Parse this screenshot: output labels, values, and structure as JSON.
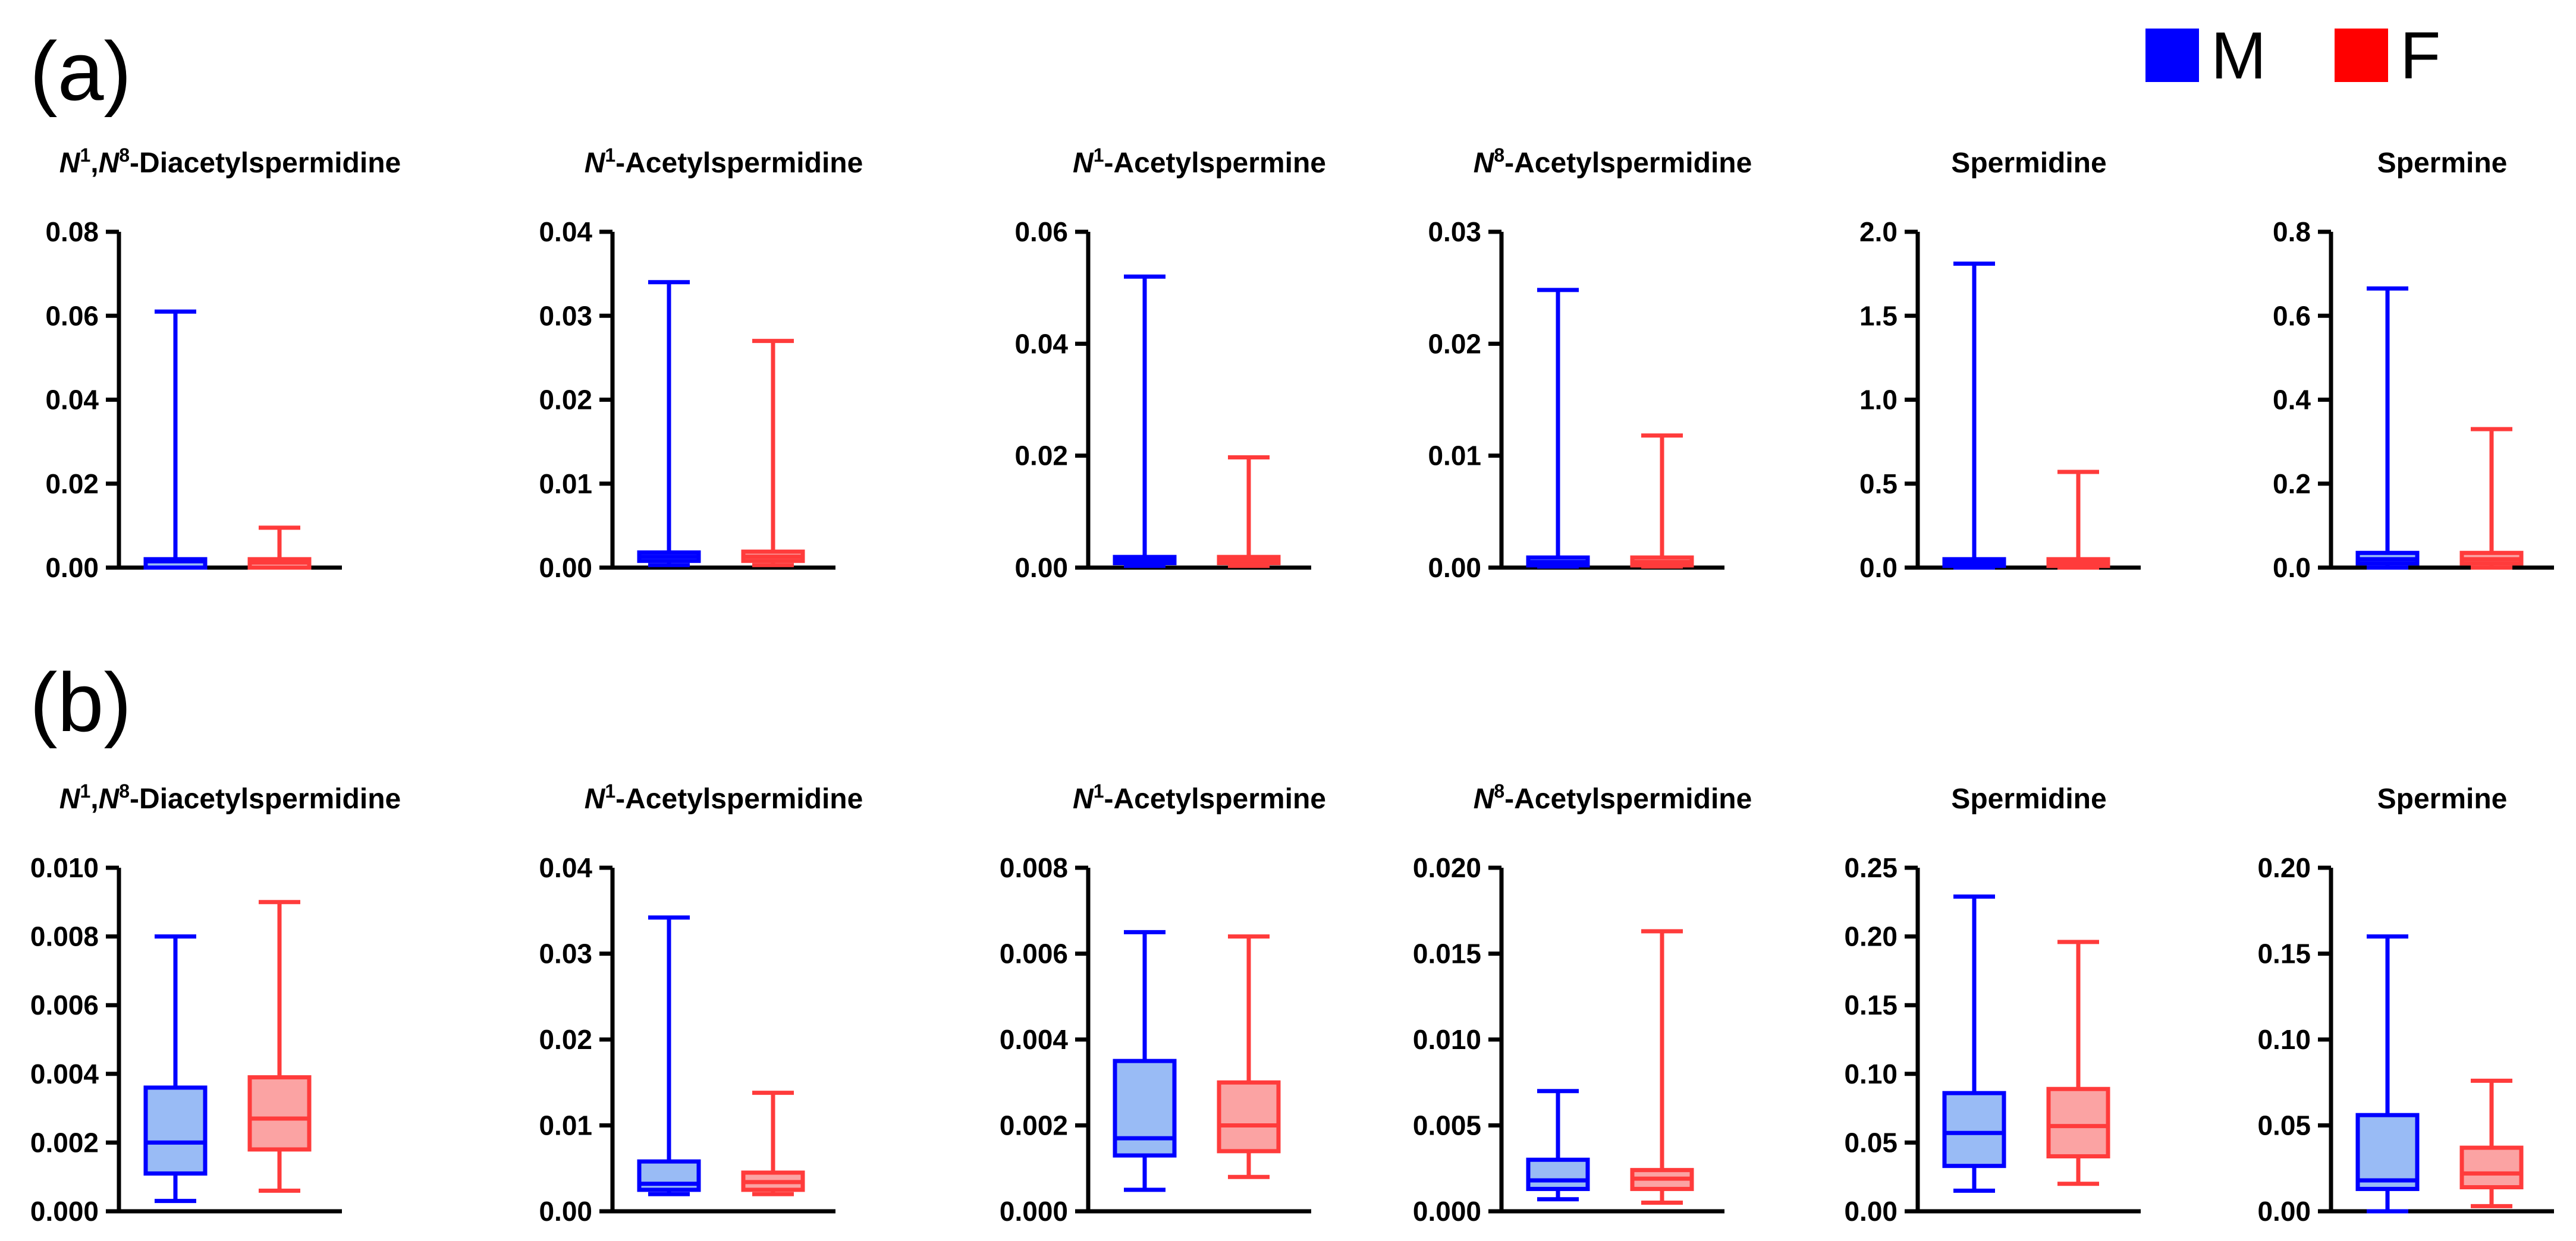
{
  "colors": {
    "M_stroke": "#0000ff",
    "M_fill": "#99bbf5",
    "F_stroke": "#ff3b3b",
    "F_fill": "#fba3a3"
  },
  "legend": [
    {
      "key": "M",
      "label": "M",
      "color": "#0000ff"
    },
    {
      "key": "F",
      "label": "F",
      "color": "#ff0000"
    }
  ],
  "chart_data": [
    {
      "panel": "(a)",
      "charts": [
        {
          "type": "box",
          "title": [
            "N",
            "1",
            ",",
            "N",
            "8",
            "-Diacetylspermidine"
          ],
          "ylim": [
            0,
            0.08
          ],
          "ticks": [
            0,
            0.02,
            0.04,
            0.06,
            0.08
          ],
          "tick_labels": [
            "0.00",
            "0.02",
            "0.04",
            "0.06",
            "0.08"
          ],
          "series": [
            {
              "name": "M",
              "min": 0.0,
              "q1": 0.0,
              "median": 0.0015,
              "q3": 0.002,
              "max": 0.061
            },
            {
              "name": "F",
              "min": 0.0,
              "q1": 0.0,
              "median": 0.0012,
              "q3": 0.002,
              "max": 0.0095
            }
          ]
        },
        {
          "type": "box",
          "title": [
            "N",
            "1",
            "-Acetylspermidine"
          ],
          "ylim": [
            0,
            0.04
          ],
          "ticks": [
            0,
            0.01,
            0.02,
            0.03,
            0.04
          ],
          "tick_labels": [
            "0.00",
            "0.01",
            "0.02",
            "0.03",
            "0.04"
          ],
          "series": [
            {
              "name": "M",
              "min": 0.0003,
              "q1": 0.0008,
              "median": 0.0013,
              "q3": 0.0018,
              "max": 0.034
            },
            {
              "name": "F",
              "min": 0.0003,
              "q1": 0.0008,
              "median": 0.0013,
              "q3": 0.0019,
              "max": 0.027
            }
          ]
        },
        {
          "type": "box",
          "title": [
            "N",
            "1",
            "-Acetylspermine"
          ],
          "ylim": [
            0,
            0.06
          ],
          "ticks": [
            0,
            0.02,
            0.04,
            0.06
          ],
          "tick_labels": [
            "0.00",
            "0.02",
            "0.04",
            "0.06"
          ],
          "series": [
            {
              "name": "M",
              "min": 0.0003,
              "q1": 0.0008,
              "median": 0.0013,
              "q3": 0.0019,
              "max": 0.052
            },
            {
              "name": "F",
              "min": 0.0003,
              "q1": 0.0008,
              "median": 0.0013,
              "q3": 0.0019,
              "max": 0.0197
            }
          ]
        },
        {
          "type": "box",
          "title": [
            "N",
            "8",
            "-Acetylspermidine"
          ],
          "ylim": [
            0,
            0.03
          ],
          "ticks": [
            0,
            0.01,
            0.02,
            0.03
          ],
          "tick_labels": [
            "0.00",
            "0.01",
            "0.02",
            "0.03"
          ],
          "series": [
            {
              "name": "M",
              "min": 0.0001,
              "q1": 0.0002,
              "median": 0.0005,
              "q3": 0.0009,
              "max": 0.0248
            },
            {
              "name": "F",
              "min": 0.0001,
              "q1": 0.0002,
              "median": 0.0005,
              "q3": 0.0009,
              "max": 0.0118
            }
          ]
        },
        {
          "type": "box",
          "title": [
            "Spermidine"
          ],
          "ylim": [
            0,
            2.0
          ],
          "ticks": [
            0,
            0.5,
            1.0,
            1.5,
            2.0
          ],
          "tick_labels": [
            "0.0",
            "0.5",
            "1.0",
            "1.5",
            "2.0"
          ],
          "series": [
            {
              "name": "M",
              "min": 0.0,
              "q1": 0.01,
              "median": 0.03,
              "q3": 0.05,
              "max": 1.81
            },
            {
              "name": "F",
              "min": 0.0,
              "q1": 0.01,
              "median": 0.03,
              "q3": 0.05,
              "max": 0.57
            }
          ]
        },
        {
          "type": "box",
          "title": [
            "Spermine"
          ],
          "ylim": [
            0,
            0.8
          ],
          "ticks": [
            0,
            0.2,
            0.4,
            0.6,
            0.8
          ],
          "tick_labels": [
            "0.0",
            "0.2",
            "0.4",
            "0.6",
            "0.8"
          ],
          "series": [
            {
              "name": "M",
              "min": 0.0,
              "q1": 0.01,
              "median": 0.02,
              "q3": 0.035,
              "max": 0.665
            },
            {
              "name": "F",
              "min": 0.0,
              "q1": 0.01,
              "median": 0.02,
              "q3": 0.035,
              "max": 0.33
            }
          ]
        }
      ]
    },
    {
      "panel": "(b)",
      "charts": [
        {
          "type": "box",
          "title": [
            "N",
            "1",
            ",",
            "N",
            "8",
            "-Diacetylspermidine"
          ],
          "ylim": [
            0,
            0.01
          ],
          "ticks": [
            0,
            0.002,
            0.004,
            0.006,
            0.008,
            0.01
          ],
          "tick_labels": [
            "0.000",
            "0.002",
            "0.004",
            "0.006",
            "0.008",
            "0.010"
          ],
          "series": [
            {
              "name": "M",
              "min": 0.0003,
              "q1": 0.0011,
              "median": 0.002,
              "q3": 0.0036,
              "max": 0.008
            },
            {
              "name": "F",
              "min": 0.0006,
              "q1": 0.0018,
              "median": 0.0027,
              "q3": 0.0039,
              "max": 0.009
            }
          ]
        },
        {
          "type": "box",
          "title": [
            "N",
            "1",
            "-Acetylspermidine"
          ],
          "ylim": [
            0,
            0.04
          ],
          "ticks": [
            0,
            0.01,
            0.02,
            0.03,
            0.04
          ],
          "tick_labels": [
            "0.00",
            "0.01",
            "0.02",
            "0.03",
            "0.04"
          ],
          "series": [
            {
              "name": "M",
              "min": 0.002,
              "q1": 0.0025,
              "median": 0.0032,
              "q3": 0.0058,
              "max": 0.0342
            },
            {
              "name": "F",
              "min": 0.002,
              "q1": 0.0025,
              "median": 0.0034,
              "q3": 0.0045,
              "max": 0.0138
            }
          ]
        },
        {
          "type": "box",
          "title": [
            "N",
            "1",
            "-Acetylspermine"
          ],
          "ylim": [
            0,
            0.008
          ],
          "ticks": [
            0,
            0.002,
            0.004,
            0.006,
            0.008
          ],
          "tick_labels": [
            "0.000",
            "0.002",
            "0.004",
            "0.006",
            "0.008"
          ],
          "series": [
            {
              "name": "M",
              "min": 0.0005,
              "q1": 0.0013,
              "median": 0.0017,
              "q3": 0.0035,
              "max": 0.0065
            },
            {
              "name": "F",
              "min": 0.0008,
              "q1": 0.0014,
              "median": 0.002,
              "q3": 0.003,
              "max": 0.0064
            }
          ]
        },
        {
          "type": "box",
          "title": [
            "N",
            "8",
            "-Acetylspermidine"
          ],
          "ylim": [
            0,
            0.02
          ],
          "ticks": [
            0,
            0.005,
            0.01,
            0.015,
            0.02
          ],
          "tick_labels": [
            "0.000",
            "0.005",
            "0.010",
            "0.015",
            "0.020"
          ],
          "series": [
            {
              "name": "M",
              "min": 0.0007,
              "q1": 0.0013,
              "median": 0.0018,
              "q3": 0.003,
              "max": 0.007
            },
            {
              "name": "F",
              "min": 0.0005,
              "q1": 0.0013,
              "median": 0.0019,
              "q3": 0.0024,
              "max": 0.0163
            }
          ]
        },
        {
          "type": "box",
          "title": [
            "Spermidine"
          ],
          "ylim": [
            0,
            0.25
          ],
          "ticks": [
            0,
            0.05,
            0.1,
            0.15,
            0.2,
            0.25
          ],
          "tick_labels": [
            "0.00",
            "0.05",
            "0.10",
            "0.15",
            "0.20",
            "0.25"
          ],
          "series": [
            {
              "name": "M",
              "min": 0.015,
              "q1": 0.033,
              "median": 0.057,
              "q3": 0.086,
              "max": 0.229
            },
            {
              "name": "F",
              "min": 0.02,
              "q1": 0.04,
              "median": 0.062,
              "q3": 0.089,
              "max": 0.196
            }
          ]
        },
        {
          "type": "box",
          "title": [
            "Spermine"
          ],
          "ylim": [
            0,
            0.2
          ],
          "ticks": [
            0,
            0.05,
            0.1,
            0.15,
            0.2
          ],
          "tick_labels": [
            "0.00",
            "0.05",
            "0.10",
            "0.15",
            "0.20"
          ],
          "series": [
            {
              "name": "M",
              "min": 0.0,
              "q1": 0.013,
              "median": 0.018,
              "q3": 0.056,
              "max": 0.16
            },
            {
              "name": "F",
              "min": 0.003,
              "q1": 0.014,
              "median": 0.022,
              "q3": 0.037,
              "max": 0.076
            }
          ]
        }
      ]
    }
  ]
}
